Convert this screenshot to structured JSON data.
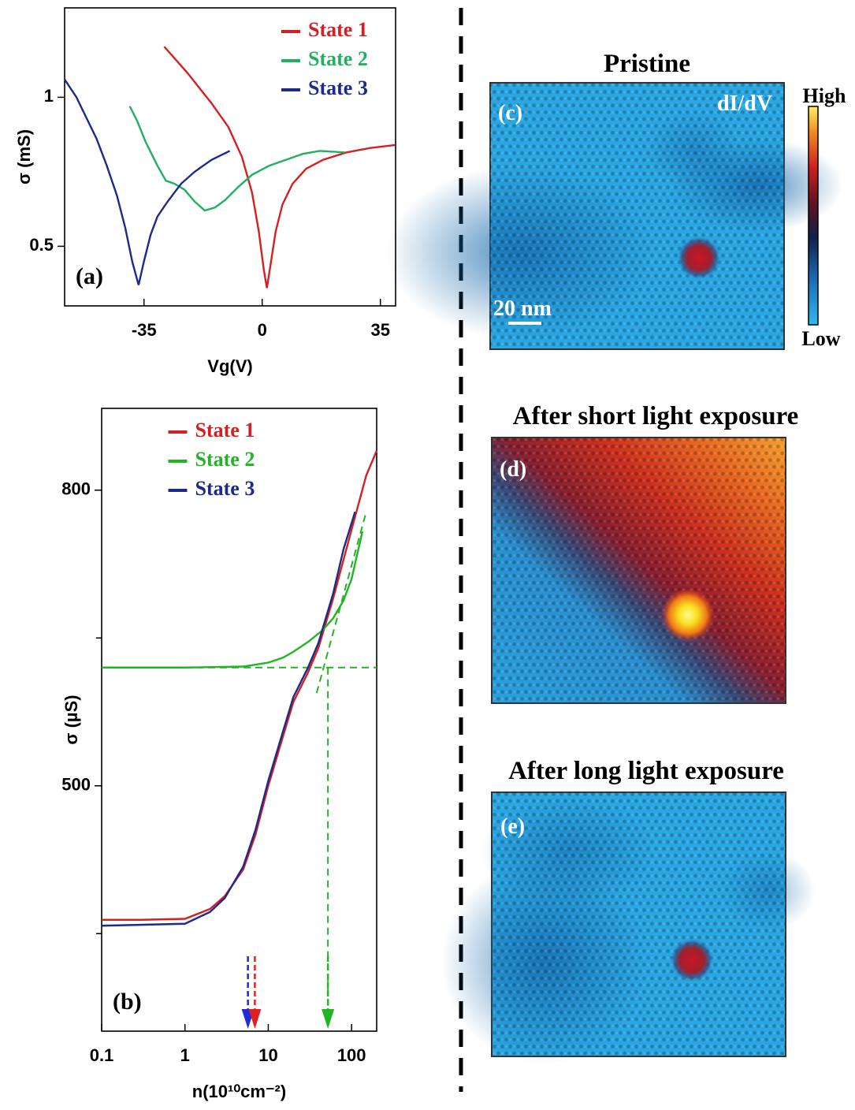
{
  "chart_data": [
    {
      "type": "line",
      "panel_label": "(a)",
      "x_label": "Vg(V)",
      "y_label": "σ (mS)",
      "xlim": [
        -58.5,
        39.5
      ],
      "ylim": [
        0.3,
        1.3
      ],
      "xticks": [
        -35,
        0,
        35
      ],
      "yticks": [
        0.5,
        1
      ],
      "legend": "upper right",
      "series": [
        {
          "name": "State 1",
          "color": "#d42020",
          "x": [
            -29,
            -22,
            -15,
            -10,
            -6,
            -3,
            -1,
            0.5,
            1.4,
            2.5,
            4,
            6,
            9,
            13,
            18,
            25,
            32,
            39.4
          ],
          "values": [
            1.17,
            1.08,
            0.98,
            0.9,
            0.8,
            0.68,
            0.55,
            0.42,
            0.36,
            0.44,
            0.55,
            0.64,
            0.71,
            0.76,
            0.79,
            0.815,
            0.83,
            0.84
          ]
        },
        {
          "name": "State 2",
          "color": "#22b060",
          "x": [
            -39.2,
            -37,
            -34.5,
            -31,
            -28.5,
            -26,
            -23,
            -20,
            -17,
            -14,
            -11,
            -7,
            -3,
            2,
            7,
            12,
            17,
            24.5
          ],
          "values": [
            0.97,
            0.92,
            0.85,
            0.77,
            0.72,
            0.71,
            0.69,
            0.65,
            0.62,
            0.63,
            0.655,
            0.7,
            0.74,
            0.77,
            0.79,
            0.81,
            0.82,
            0.815
          ]
        },
        {
          "name": "State 3",
          "color": "#1c2a8c",
          "x": [
            -58.5,
            -55,
            -52,
            -49,
            -46,
            -43,
            -40.5,
            -38.5,
            -36.6,
            -35,
            -33,
            -31,
            -28,
            -24,
            -20,
            -15,
            -9.6
          ],
          "values": [
            1.06,
            1.0,
            0.93,
            0.86,
            0.77,
            0.67,
            0.56,
            0.45,
            0.37,
            0.45,
            0.54,
            0.6,
            0.65,
            0.71,
            0.75,
            0.79,
            0.82
          ]
        }
      ]
    },
    {
      "type": "line",
      "panel_label": "(b)",
      "x_label": "n(10¹⁰cm⁻²)",
      "y_label": "σ (µS)",
      "xscale": "log",
      "xlim": [
        0.1,
        200
      ],
      "ylim": [
        251,
        883
      ],
      "xticks": [
        0.1,
        1,
        10,
        100
      ],
      "yticks": [
        500,
        800
      ],
      "yminor_ticks": [
        350,
        650
      ],
      "legend": "upper center",
      "series": [
        {
          "name": "State 1",
          "color": "#d42020",
          "x": [
            0.1,
            0.3,
            1,
            2,
            3,
            5,
            7,
            10,
            15,
            20,
            30,
            40,
            60,
            100,
            150,
            200
          ],
          "values": [
            364,
            364,
            365,
            375,
            388,
            415,
            450,
            500,
            550,
            585,
            615,
            640,
            690,
            760,
            815,
            840
          ]
        },
        {
          "name": "State 2",
          "color": "#22b522",
          "x": [
            0.1,
            1,
            5,
            10,
            15,
            20,
            30,
            45,
            60,
            80,
            100,
            135
          ],
          "values": [
            620,
            620,
            621,
            625,
            630,
            636,
            646,
            658,
            670,
            688,
            710,
            758
          ]
        },
        {
          "name": "State 3",
          "color": "#1c2a8c",
          "x": [
            0.1,
            1,
            2,
            3,
            5,
            7,
            10,
            15,
            20,
            30,
            40,
            60,
            80,
            110
          ],
          "values": [
            358,
            360,
            372,
            386,
            418,
            455,
            505,
            555,
            590,
            620,
            645,
            695,
            740,
            778
          ]
        }
      ],
      "reference_lines": [
        {
          "color": "#22b522",
          "x": [
            0.1,
            200
          ],
          "values": [
            620,
            620
          ]
        },
        {
          "color": "#22b522",
          "x": [
            38,
            150
          ],
          "values": [
            594,
            778
          ]
        },
        {
          "color": "#22b522",
          "x": [
            52,
            52
          ],
          "values": [
            620,
            268
          ]
        }
      ],
      "arrows": [
        {
          "color": "#1c2ae0",
          "x": 5.7
        },
        {
          "color": "#e02020",
          "x": 6.9
        },
        {
          "color": "#22b522",
          "x": 52
        }
      ]
    }
  ],
  "image_panels": [
    {
      "title": "Pristine",
      "label": "(c)"
    },
    {
      "title": "After short light exposure",
      "label": "(d)"
    },
    {
      "title": "After long light exposure",
      "label": "(e)"
    }
  ],
  "channel": "dI/dV",
  "scale_bar": "20 nm",
  "colorbar": {
    "high": "High",
    "low": "Low"
  }
}
